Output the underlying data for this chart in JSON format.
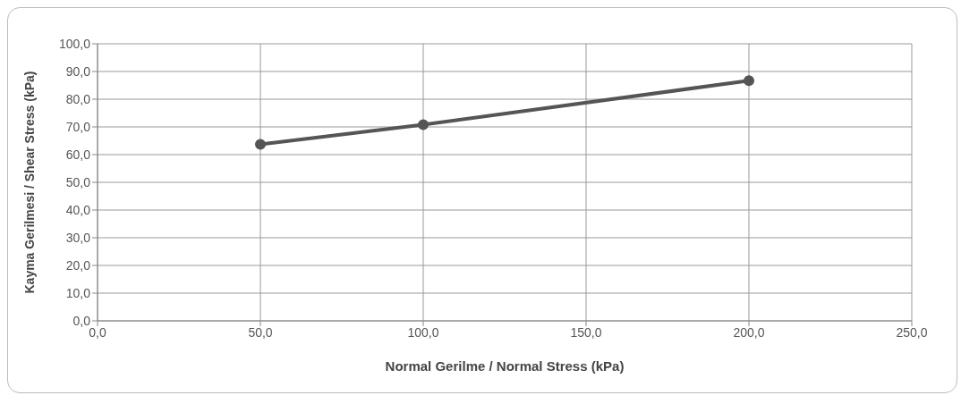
{
  "chart_data": {
    "type": "line",
    "xlabel": "Normal Gerilme / Normal Stress (kPa)",
    "ylabel": "Kayma Gerilmesi / Shear Stress (kPa)",
    "x": [
      50,
      100,
      200
    ],
    "series": [
      {
        "color": "#555555",
        "values": [
          63.7,
          70.8,
          86.7
        ]
      }
    ],
    "xlim": [
      0,
      250
    ],
    "ylim": [
      0,
      100
    ],
    "xticks": [
      {
        "value": 0,
        "label": "0,0"
      },
      {
        "value": 50,
        "label": "50,0"
      },
      {
        "value": 100,
        "label": "100,0"
      },
      {
        "value": 150,
        "label": "150,0"
      },
      {
        "value": 200,
        "label": "200,0"
      },
      {
        "value": 250,
        "label": "250,0"
      }
    ],
    "yticks": [
      {
        "value": 0,
        "label": "0,0"
      },
      {
        "value": 10,
        "label": "10,0"
      },
      {
        "value": 20,
        "label": "20,0"
      },
      {
        "value": 30,
        "label": "30,0"
      },
      {
        "value": 40,
        "label": "40,0"
      },
      {
        "value": 50,
        "label": "50,0"
      },
      {
        "value": 60,
        "label": "60,0"
      },
      {
        "value": 70,
        "label": "70,0"
      },
      {
        "value": 80,
        "label": "80,0"
      },
      {
        "value": 90,
        "label": "90,0"
      },
      {
        "value": 100,
        "label": "100,0"
      }
    ],
    "grid": true,
    "marker": "circle",
    "line_style": "solid"
  }
}
